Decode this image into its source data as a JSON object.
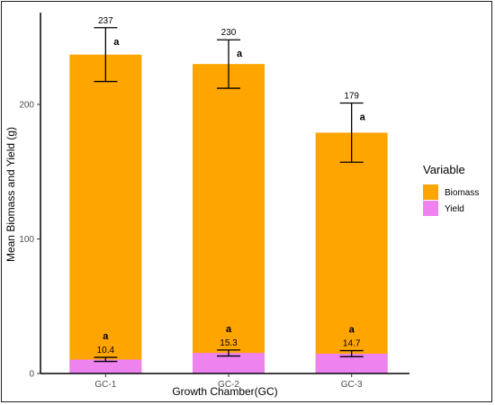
{
  "chart_data": {
    "type": "bar",
    "stacked": false,
    "categories": [
      "GC-1",
      "GC-2",
      "GC-3"
    ],
    "series": [
      {
        "name": "Biomass",
        "color": "#FFA500",
        "values": [
          237,
          230,
          179
        ],
        "labels": [
          "237",
          "230",
          "179"
        ],
        "error_low": [
          217,
          212,
          157
        ],
        "error_high": [
          257,
          248,
          201
        ],
        "significance": [
          "a",
          "a",
          "a"
        ]
      },
      {
        "name": "Yield",
        "color": "#EE82EE",
        "values": [
          10.4,
          15.3,
          14.7
        ],
        "labels": [
          "10.4",
          "15.3",
          "14.7"
        ],
        "error_low": [
          9,
          13,
          12.5
        ],
        "error_high": [
          12,
          17.5,
          17
        ],
        "significance": [
          "a",
          "a",
          "a"
        ]
      }
    ],
    "xlabel": "Growth Chamber(GC)",
    "ylabel": "Mean Biomass and Yield (g)",
    "ylim": [
      0,
      265
    ],
    "yticks": [
      0,
      100,
      200
    ],
    "grid": false,
    "legend": {
      "title": "Variable",
      "position": "right",
      "entries": [
        "Biomass",
        "Yield"
      ]
    }
  }
}
